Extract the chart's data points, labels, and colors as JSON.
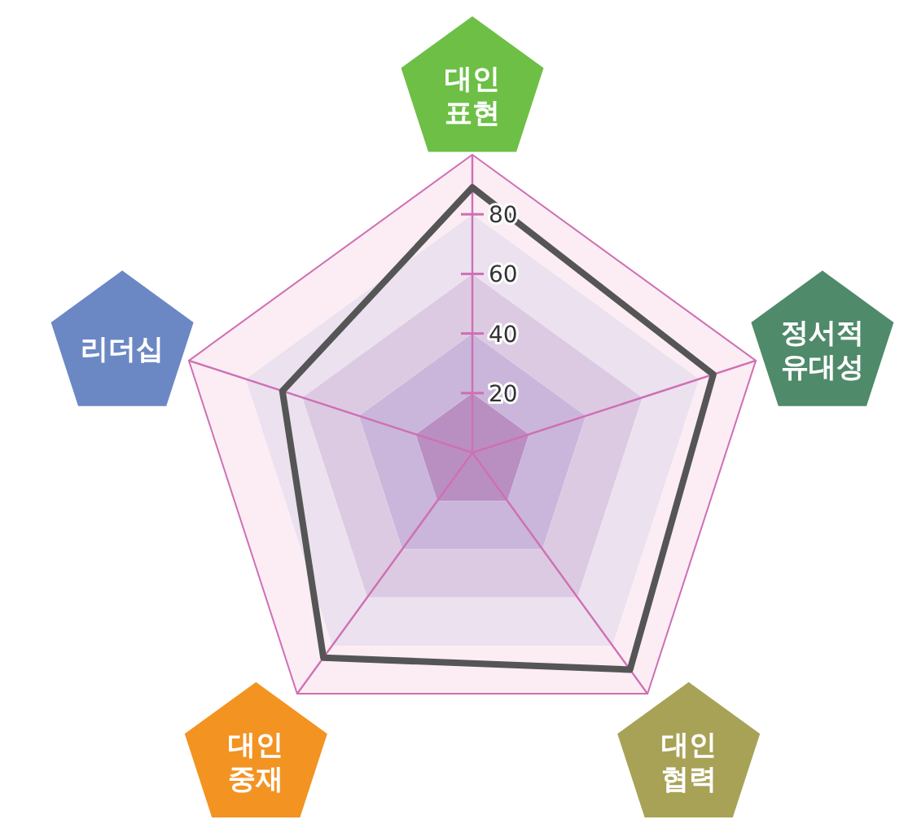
{
  "chart_data": {
    "type": "radar",
    "categories": [
      "대인\n표현",
      "정서적\n유대성",
      "대인\n협력",
      "대인\n중재",
      "리더십"
    ],
    "colors": [
      "#6dbf45",
      "#4f8a6a",
      "#a8a257",
      "#f39322",
      "#6b88c4"
    ],
    "series": [
      {
        "color": "#555555",
        "values": [
          89,
          85,
          90,
          85,
          67
        ]
      }
    ],
    "ylim": [
      0,
      100
    ],
    "yticks": [
      20,
      40,
      60,
      80
    ],
    "grid": true
  }
}
